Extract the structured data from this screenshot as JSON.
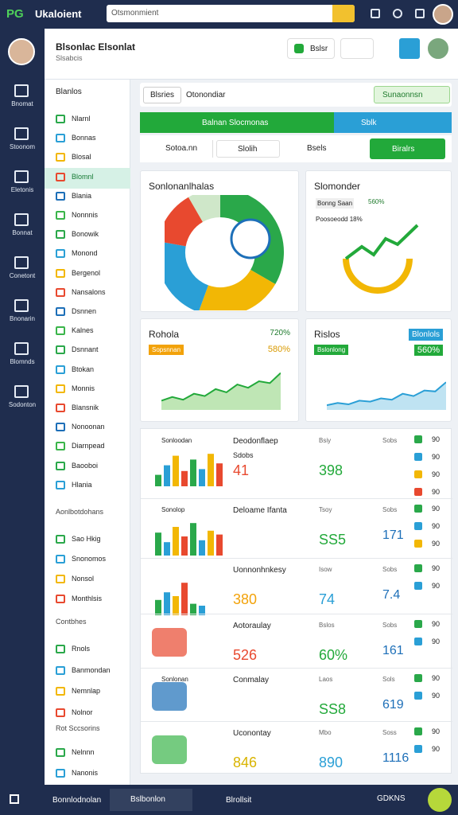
{
  "topbar": {
    "brand": "PG",
    "app_name": "Ukaloient",
    "search": "Otsmonmient"
  },
  "rail": [
    "Bnomat",
    "Stoonom",
    "Eletonis",
    "Bonnat",
    "Conetont",
    "Bnonarin",
    "Blomnds",
    "Sodonton"
  ],
  "header": {
    "title": "Blsonlac Elsonlat",
    "subtitle": "Slsabcis",
    "button": "Bslsr"
  },
  "sidebar": {
    "title": "Blanlos",
    "group1": [
      "Nlarnl",
      "Bonnas",
      "Blosal",
      "Blomnl",
      "Blania",
      "Nonnnis",
      "Bonowik",
      "Monond",
      "Bergenol",
      "Nansalons",
      "Dsnnen",
      "Kalnes",
      "Dsnnant",
      "Btokan",
      "Monnis",
      "Blansnik",
      "Nonoonan",
      "Diarnpead",
      "Baooboi",
      "Hlania"
    ],
    "heading2": "Aonlbotdohans",
    "group2": [
      "Sao Hkig",
      "Snonomos",
      "Nonsol",
      "Monthlsis"
    ],
    "heading3": "Contbhes",
    "group3": [
      "Rnols",
      "Banmondan",
      "Nemnlap",
      "Nolnor"
    ],
    "heading4": "Rot Sccsorins",
    "group4": [
      "Nelnnn",
      "Nanonis"
    ]
  },
  "toolbar": {
    "tab": "Blsries",
    "label": "Otonondiar",
    "action": "Sunaonnsn"
  },
  "banner": {
    "green": "Balnan Slocmonas",
    "blue": "Sblk"
  },
  "filters": {
    "first": "Sotoa.nn",
    "second": "Slolih",
    "third": "Bsels",
    "button": "Biralrs"
  },
  "cards": [
    {
      "title": "Sonlonanlhalas"
    },
    {
      "title": "Slomonder",
      "tag": "Bonng Saan",
      "tag_value": "560%",
      "note": "Poosoeodd 18%"
    },
    {
      "title": "Rohola",
      "badge": "Sopsnnan",
      "value": "720%",
      "value2": "580%",
      "trend": [
        20,
        28,
        22,
        35,
        30,
        45,
        38,
        55,
        48,
        62,
        58,
        80
      ]
    },
    {
      "title": "Rislos",
      "badge": "Bslonlong",
      "value": "Blonlols",
      "value2": "560%",
      "trend": [
        10,
        15,
        12,
        20,
        18,
        25,
        22,
        35,
        30,
        42,
        40,
        60
      ]
    }
  ],
  "rows": [
    {
      "mini": "Sonloodan",
      "name": "Deodonflaep",
      "sub": "Sdobs",
      "v1": "41",
      "l2": "Bsiy",
      "v2": "398",
      "l3": "Sobs",
      "v3": "",
      "side": [
        "90",
        "90",
        "90",
        "90"
      ],
      "bars": [
        30,
        55,
        80,
        40,
        70,
        45,
        85,
        60
      ]
    },
    {
      "mini": "Sonolop",
      "name": "Deloame Ifanta",
      "sub": "",
      "v1": "",
      "l2": "Tsoy",
      "v2": "SS5",
      "l3": "Sobs",
      "v3": "171",
      "side": [
        "90",
        "90",
        "90"
      ],
      "bars": [
        60,
        35,
        75,
        50,
        85,
        40,
        65,
        55
      ]
    },
    {
      "mini": "",
      "name": "Uonnonhnkesy",
      "sub": "",
      "v1": "380",
      "l2": "Isow",
      "v2": "74",
      "l3": "Sobs",
      "v3": "7.4",
      "side": [
        "90",
        "90"
      ],
      "bars": [
        40,
        60,
        50,
        85,
        30,
        25
      ]
    },
    {
      "mini": "",
      "name": "Aotoraulay",
      "sub": "",
      "v1": "526",
      "l2": "Bslos",
      "v2": "60%",
      "l3": "Sobs",
      "v3": "161",
      "side": [
        "90",
        "90"
      ],
      "bars": []
    },
    {
      "mini": "Sonlonan",
      "name": "Conmalay",
      "sub": "",
      "v1": "",
      "l2": "Laos",
      "v2": "SS8",
      "l3": "Sols",
      "v3": "619",
      "side": [
        "90",
        "90"
      ],
      "bars": []
    },
    {
      "mini": "",
      "name": "Uconontay",
      "sub": "",
      "v1": "846",
      "l2": "Mbo",
      "v2": "890",
      "l3": "Soss",
      "v3": "1116",
      "side": [
        "90",
        "90"
      ],
      "bars": []
    }
  ],
  "bottombar": {
    "first": "Bonnlodnolan",
    "second": "Bslbonlon",
    "third": "Blrollsit",
    "right": "GDKNS"
  }
}
